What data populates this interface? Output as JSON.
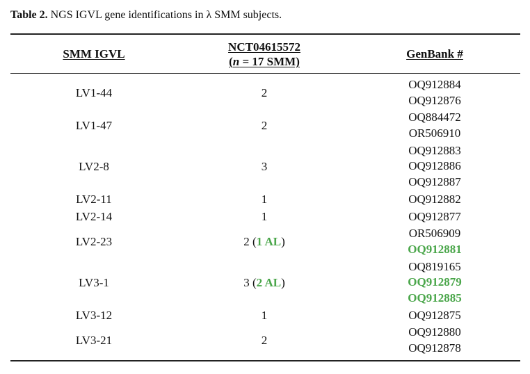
{
  "caption": {
    "label": "Table 2.",
    "text": " NGS IGVL gene identifications in λ SMM subjects."
  },
  "headers": {
    "gene": "SMM IGVL",
    "trial": "NCT04615572",
    "n_prefix": "(",
    "n_italic": "n",
    "n_suffix": " = 17 SMM)",
    "genbank": "GenBank #"
  },
  "colors": {
    "amyloid_highlight": "#4aa64a"
  },
  "rows": [
    {
      "gene": "LV1-44",
      "count": "2",
      "count_al": "",
      "accessions": [
        {
          "id": "OQ912884",
          "al": false
        },
        {
          "id": "OQ912876",
          "al": false
        }
      ]
    },
    {
      "gene": "LV1-47",
      "count": "2",
      "count_al": "",
      "accessions": [
        {
          "id": "OQ884472",
          "al": false
        },
        {
          "id": "OR506910",
          "al": false
        }
      ]
    },
    {
      "gene": "LV2-8",
      "count": "3",
      "count_al": "",
      "accessions": [
        {
          "id": "OQ912883",
          "al": false
        },
        {
          "id": "OQ912886",
          "al": false
        },
        {
          "id": "OQ912887",
          "al": false
        }
      ]
    },
    {
      "gene": "LV2-11",
      "count": "1",
      "count_al": "",
      "accessions": [
        {
          "id": "OQ912882",
          "al": false
        }
      ]
    },
    {
      "gene": "LV2-14",
      "count": "1",
      "count_al": "",
      "accessions": [
        {
          "id": "OQ912877",
          "al": false
        }
      ]
    },
    {
      "gene": "LV2-23",
      "count": "2",
      "count_al": "1 AL",
      "accessions": [
        {
          "id": "OR506909",
          "al": false
        },
        {
          "id": "OQ912881",
          "al": true
        }
      ]
    },
    {
      "gene": "LV3-1",
      "count": "3",
      "count_al": "2 AL",
      "accessions": [
        {
          "id": "OQ819165",
          "al": false
        },
        {
          "id": "OQ912879",
          "al": true
        },
        {
          "id": "OQ912885",
          "al": true
        }
      ]
    },
    {
      "gene": "LV3-12",
      "count": "1",
      "count_al": "",
      "accessions": [
        {
          "id": "OQ912875",
          "al": false
        }
      ]
    },
    {
      "gene": "LV3-21",
      "count": "2",
      "count_al": "",
      "accessions": [
        {
          "id": "OQ912880",
          "al": false
        },
        {
          "id": "OQ912878",
          "al": false
        }
      ]
    }
  ]
}
